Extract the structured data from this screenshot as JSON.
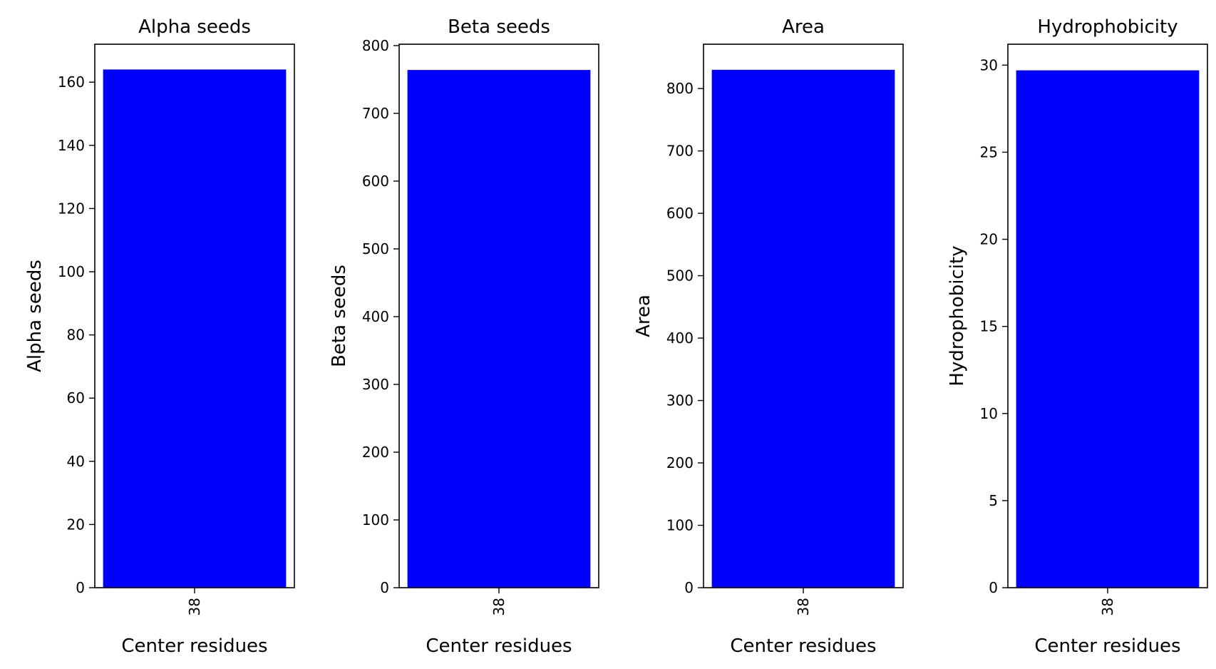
{
  "chart_data": [
    {
      "type": "bar",
      "title": "Alpha seeds",
      "xlabel": "Center residues",
      "ylabel": "Alpha seeds",
      "categories": [
        "38"
      ],
      "values": [
        164
      ],
      "ylim": [
        0,
        172
      ],
      "yticks": [
        0,
        20,
        40,
        60,
        80,
        100,
        120,
        140,
        160
      ],
      "bar_color": "#0000ff",
      "grid": false
    },
    {
      "type": "bar",
      "title": "Beta seeds",
      "xlabel": "Center residues",
      "ylabel": "Beta seeds",
      "categories": [
        "38"
      ],
      "values": [
        764
      ],
      "ylim": [
        0,
        802
      ],
      "yticks": [
        0,
        100,
        200,
        300,
        400,
        500,
        600,
        700,
        800
      ],
      "bar_color": "#0000ff",
      "grid": false
    },
    {
      "type": "bar",
      "title": "Area",
      "xlabel": "Center residues",
      "ylabel": "Area",
      "categories": [
        "38"
      ],
      "values": [
        830
      ],
      "ylim": [
        0,
        871
      ],
      "yticks": [
        0,
        100,
        200,
        300,
        400,
        500,
        600,
        700,
        800
      ],
      "bar_color": "#0000ff",
      "grid": false
    },
    {
      "type": "bar",
      "title": "Hydrophobicity",
      "xlabel": "Center residues",
      "ylabel": "Hydrophobicity",
      "categories": [
        "38"
      ],
      "values": [
        29.7
      ],
      "ylim": [
        0,
        31.2
      ],
      "yticks": [
        0,
        5,
        10,
        15,
        20,
        25,
        30
      ],
      "bar_color": "#0000ff",
      "grid": false
    }
  ]
}
